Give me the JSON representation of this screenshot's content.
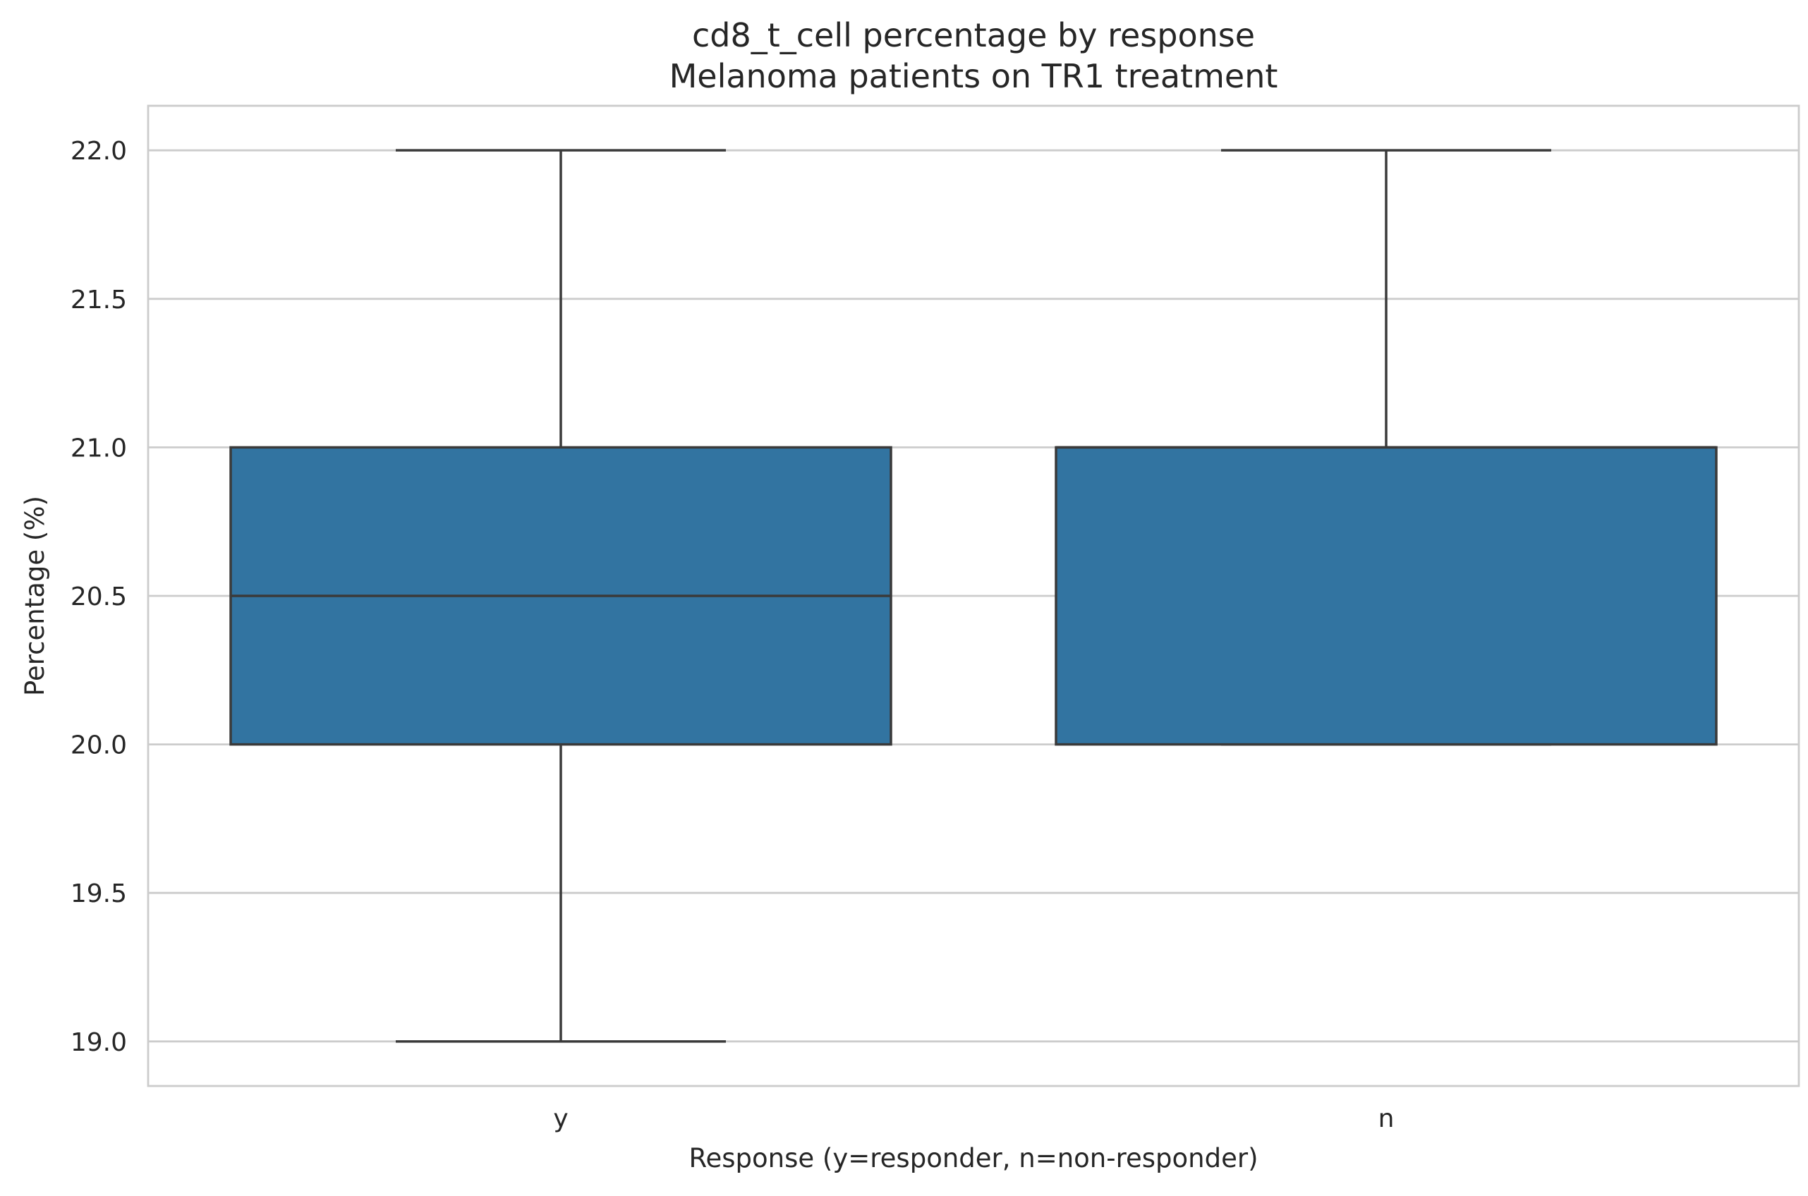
{
  "chart_data": {
    "type": "box",
    "title": "cd8_t_cell percentage by response",
    "subtitle": "Melanoma patients on TR1 treatment",
    "xlabel": "Response (y=responder, n=non-responder)",
    "ylabel": "Percentage (%)",
    "ylim": [
      18.85,
      22.15
    ],
    "yticks": [
      "19.0",
      "19.5",
      "20.0",
      "20.5",
      "21.0",
      "21.5",
      "22.0"
    ],
    "grid": "horizontal",
    "box_color": "#3274a1",
    "edge_color": "#3a3a3a",
    "categories": [
      "y",
      "n"
    ],
    "boxes": [
      {
        "category": "y",
        "min": 19.0,
        "q1": 20.0,
        "median": 20.5,
        "q3": 21.0,
        "max": 22.0
      },
      {
        "category": "n",
        "min": 20.0,
        "q1": 20.0,
        "median": 21.0,
        "q3": 21.0,
        "max": 22.0
      }
    ]
  }
}
